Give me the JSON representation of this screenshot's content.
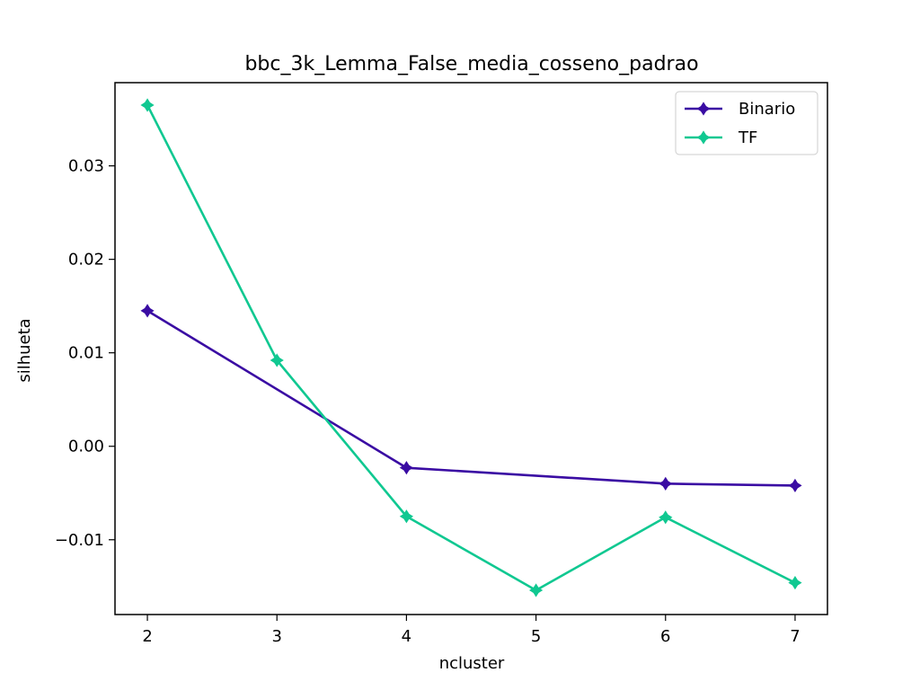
{
  "chart_data": {
    "type": "line",
    "title": "bbc_3k_Lemma_False_media_cosseno_padrao",
    "xlabel": "ncluster",
    "ylabel": "silhueta",
    "x": [
      2,
      3,
      4,
      5,
      6,
      7
    ],
    "x_tick_labels": [
      "2",
      "3",
      "4",
      "5",
      "6",
      "7"
    ],
    "xlim": [
      1.75,
      7.25
    ],
    "ylim": [
      -0.018,
      0.0389
    ],
    "y_ticks": [
      -0.01,
      0.0,
      0.01,
      0.02,
      0.03
    ],
    "y_tick_labels": [
      "−0.01",
      "0.00",
      "0.01",
      "0.02",
      "0.03"
    ],
    "grid": false,
    "legend_position": "top-right",
    "marker": "star-cross",
    "series": [
      {
        "name": "Binario",
        "color": "#3a0ca3",
        "values": [
          0.0145,
          null,
          -0.0023,
          null,
          -0.004,
          -0.0042
        ]
      },
      {
        "name": "TF",
        "color": "#10c891",
        "values": [
          0.0365,
          0.0092,
          -0.0075,
          -0.0154,
          -0.0076,
          -0.0146
        ]
      }
    ]
  }
}
